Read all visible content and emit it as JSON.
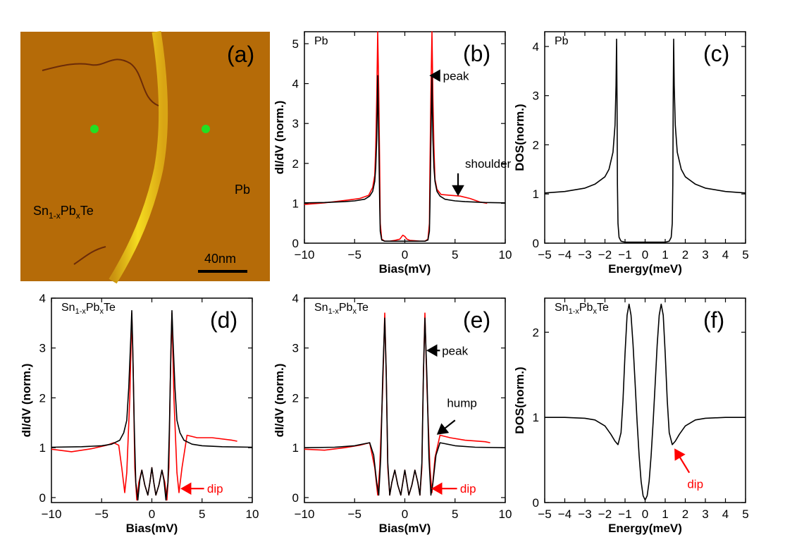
{
  "image_panel": {
    "label": "(a)",
    "text_pb": "Pb",
    "text_sn_main": "Sn",
    "text_sn_sub1": "1-x",
    "text_sn_pb": "Pb",
    "text_sn_sub2": "x",
    "text_sn_end": "Te",
    "scale_bar_label": "40nm",
    "colors": {
      "background": "#b56b08",
      "step": "#f2d21a",
      "marker": "#22e022",
      "defect": "#6b2b08"
    }
  },
  "chart_data": [
    {
      "id": "b",
      "type": "line",
      "label": "(b)",
      "title": "Pb",
      "xlabel": "Bias(mV)",
      "ylabel": "dI/dV (norm.)",
      "xlim": [
        -10,
        10
      ],
      "ylim": [
        0,
        5.3
      ],
      "xticks": [
        -10,
        -5,
        0,
        5,
        10
      ],
      "yticks": [
        0,
        1,
        2,
        3,
        4,
        5
      ],
      "series": [
        {
          "color": "#ff0000",
          "x": [
            -10,
            -8,
            -6,
            -4.5,
            -3.6,
            -3.2,
            -3.0,
            -2.9,
            -2.8,
            -2.7,
            -2.6,
            -2.5,
            -2.45,
            -2.3,
            -2.0,
            -1.5,
            -1.0,
            -0.5,
            -0.2,
            0,
            0.2,
            0.5,
            1.0,
            1.5,
            2.0,
            2.3,
            2.45,
            2.5,
            2.6,
            2.7,
            2.8,
            2.9,
            3.0,
            3.2,
            3.6,
            4.5,
            5.5,
            6.5,
            7.5,
            8.2
          ],
          "y": [
            0.97,
            1.01,
            1.07,
            1.12,
            1.2,
            1.4,
            1.7,
            2.4,
            3.6,
            5.3,
            3.8,
            1.8,
            0.5,
            0.1,
            0.05,
            0.05,
            0.07,
            0.1,
            0.2,
            0.17,
            0.1,
            0.07,
            0.06,
            0.05,
            0.05,
            0.1,
            0.5,
            1.8,
            3.8,
            5.3,
            3.6,
            2.4,
            1.6,
            1.35,
            1.22,
            1.2,
            1.18,
            1.12,
            1.03,
            1.0
          ]
        },
        {
          "color": "#000000",
          "x": [
            -10,
            -8,
            -6,
            -5,
            -4,
            -3.5,
            -3.2,
            -3.0,
            -2.9,
            -2.8,
            -2.75,
            -2.7,
            -2.6,
            -2.5,
            -2.45,
            -2.3,
            -2.0,
            -1.0,
            0,
            1.0,
            2.0,
            2.3,
            2.45,
            2.5,
            2.6,
            2.7,
            2.75,
            2.8,
            2.9,
            3.0,
            3.2,
            3.5,
            4,
            5,
            6,
            8,
            10
          ],
          "y": [
            1.01,
            1.02,
            1.04,
            1.06,
            1.1,
            1.18,
            1.3,
            1.55,
            1.9,
            2.6,
            3.3,
            4.2,
            2.6,
            0.9,
            0.3,
            0.08,
            0.05,
            0.05,
            0.05,
            0.05,
            0.05,
            0.08,
            0.3,
            0.9,
            2.6,
            4.2,
            3.3,
            2.6,
            1.9,
            1.55,
            1.3,
            1.18,
            1.1,
            1.06,
            1.04,
            1.02,
            1.01
          ]
        }
      ],
      "annotations": [
        {
          "text": "peak",
          "color": "#000000",
          "x": 3.8,
          "y": 4.2,
          "arrow_from": [
            3.5,
            4.2
          ],
          "arrow_to": [
            2.6,
            4.2
          ]
        },
        {
          "text": "shoulder",
          "color": "#000000",
          "x": 6,
          "y": 2.0,
          "arrow_from": [
            5.3,
            1.75
          ],
          "arrow_to": [
            5.3,
            1.22
          ]
        }
      ]
    },
    {
      "id": "c",
      "type": "line",
      "label": "(c)",
      "title": "Pb",
      "xlabel": "Energy(meV)",
      "ylabel": "DOS(norm.)",
      "xlim": [
        -5,
        5
      ],
      "ylim": [
        0,
        4.3
      ],
      "xticks": [
        -5,
        -4,
        -3,
        -2,
        -1,
        0,
        1,
        2,
        3,
        4,
        5
      ],
      "yticks": [
        0,
        1,
        2,
        3,
        4
      ],
      "series": [
        {
          "color": "#000000",
          "x": [
            -5,
            -4,
            -3,
            -2.5,
            -2,
            -1.8,
            -1.6,
            -1.5,
            -1.45,
            -1.42,
            -1.4,
            -1.38,
            -1.35,
            -1.3,
            -1.2,
            -1.0,
            0,
            1.0,
            1.2,
            1.3,
            1.35,
            1.38,
            1.4,
            1.42,
            1.45,
            1.5,
            1.6,
            1.8,
            2,
            2.5,
            3,
            4,
            5
          ],
          "y": [
            1.02,
            1.05,
            1.12,
            1.2,
            1.35,
            1.5,
            1.85,
            2.4,
            3.2,
            4.15,
            3.0,
            1.2,
            0.4,
            0.12,
            0.04,
            0.02,
            0.02,
            0.02,
            0.04,
            0.12,
            0.4,
            1.2,
            3.0,
            4.15,
            3.2,
            2.4,
            1.85,
            1.5,
            1.35,
            1.2,
            1.12,
            1.05,
            1.02
          ]
        }
      ],
      "annotations": []
    },
    {
      "id": "d",
      "type": "line",
      "label": "(d)",
      "title": "Sn1-xPbxTe",
      "xlabel": "Bias(mV)",
      "ylabel": "dI/dV (norm.)",
      "xlim": [
        -10,
        10
      ],
      "ylim": [
        -0.1,
        4.0
      ],
      "xticks": [
        -10,
        -5,
        0,
        5,
        10
      ],
      "yticks": [
        0,
        1,
        2,
        3,
        4
      ],
      "series": [
        {
          "color": "#ff0000",
          "x": [
            -10,
            -8,
            -6,
            -4.5,
            -3.8,
            -3.3,
            -3.0,
            -2.7,
            -2.5,
            -2.2,
            -2.0,
            -1.85,
            -1.7,
            -1.5,
            -1.3,
            -1.0,
            -0.7,
            -0.4,
            -0.2,
            0,
            0.2,
            0.4,
            0.7,
            1.0,
            1.3,
            1.5,
            1.7,
            1.85,
            2.0,
            2.2,
            2.5,
            2.7,
            3.0,
            3.5,
            4.5,
            6,
            8,
            8.5
          ],
          "y": [
            0.97,
            0.92,
            0.98,
            1.05,
            1.1,
            1.05,
            0.6,
            0.1,
            0.5,
            2.0,
            3.7,
            2.5,
            0.6,
            -0.05,
            0.3,
            0.55,
            0.25,
            0.05,
            0.3,
            0.6,
            0.3,
            0.05,
            0.25,
            0.55,
            0.3,
            -0.05,
            0.6,
            2.5,
            3.7,
            2.0,
            0.5,
            0.1,
            0.6,
            1.25,
            1.2,
            1.2,
            1.15,
            1.13
          ]
        },
        {
          "color": "#000000",
          "x": [
            -10,
            -7,
            -5,
            -4,
            -3.2,
            -2.8,
            -2.5,
            -2.3,
            -2.1,
            -2.0,
            -1.9,
            -1.75,
            -1.6,
            -1.4,
            -1.2,
            -1.0,
            -0.7,
            -0.4,
            -0.2,
            0,
            0.2,
            0.4,
            0.7,
            1.0,
            1.2,
            1.4,
            1.6,
            1.75,
            1.9,
            2.0,
            2.1,
            2.3,
            2.5,
            2.8,
            3.2,
            4,
            5,
            7,
            10
          ],
          "y": [
            1.01,
            1.02,
            1.04,
            1.07,
            1.15,
            1.3,
            1.55,
            2.2,
            3.2,
            3.75,
            3.0,
            1.4,
            0.3,
            -0.05,
            0.35,
            0.55,
            0.25,
            0.05,
            0.3,
            0.6,
            0.3,
            0.05,
            0.25,
            0.55,
            0.35,
            -0.05,
            0.3,
            1.4,
            3.0,
            3.75,
            3.2,
            2.2,
            1.55,
            1.3,
            1.15,
            1.07,
            1.04,
            1.02,
            1.01
          ]
        }
      ],
      "annotations": [
        {
          "text": "dip",
          "color": "#ff0000",
          "x": 5.5,
          "y": 0.18,
          "arrow_from": [
            5.2,
            0.18
          ],
          "arrow_to": [
            3.0,
            0.18
          ]
        }
      ]
    },
    {
      "id": "e",
      "type": "line",
      "label": "(e)",
      "title": "Sn1-xPbxTe",
      "xlabel": "Bias(mV)",
      "ylabel": "dI/dV (norm.)",
      "xlim": [
        -10,
        10
      ],
      "ylim": [
        -0.1,
        4.0
      ],
      "xticks": [
        -10,
        -5,
        0,
        5,
        10
      ],
      "yticks": [
        0,
        1,
        2,
        3,
        4
      ],
      "series": [
        {
          "color": "#ff0000",
          "x": [
            -10,
            -8,
            -6,
            -4.5,
            -3.5,
            -3.0,
            -2.7,
            -2.5,
            -2.2,
            -2.0,
            -1.85,
            -1.7,
            -1.5,
            -1.3,
            -1.0,
            -0.7,
            -0.4,
            -0.2,
            0,
            0.2,
            0.4,
            0.7,
            1.0,
            1.3,
            1.5,
            1.7,
            1.85,
            2.0,
            2.2,
            2.5,
            2.7,
            3.0,
            3.5,
            4.5,
            6,
            8,
            8.5
          ],
          "y": [
            0.97,
            0.95,
            1.0,
            1.05,
            1.1,
            0.6,
            0.05,
            0.6,
            2.2,
            3.7,
            2.5,
            0.6,
            0.05,
            0.3,
            0.55,
            0.25,
            0.05,
            0.3,
            0.55,
            0.3,
            0.05,
            0.25,
            0.55,
            0.3,
            0.05,
            0.6,
            2.5,
            3.7,
            2.2,
            0.6,
            0.1,
            0.8,
            1.25,
            1.2,
            1.15,
            1.12,
            1.1
          ]
        },
        {
          "color": "#000000",
          "x": [
            -10,
            -7,
            -5,
            -4,
            -3.5,
            -3.1,
            -2.8,
            -2.6,
            -2.4,
            -2.2,
            -2.0,
            -1.85,
            -1.7,
            -1.5,
            -1.3,
            -1.0,
            -0.7,
            -0.4,
            -0.2,
            0,
            0.2,
            0.4,
            0.7,
            1.0,
            1.3,
            1.5,
            1.7,
            1.85,
            2.0,
            2.2,
            2.4,
            2.6,
            2.8,
            3.1,
            3.5,
            4,
            5,
            7,
            10
          ],
          "y": [
            1.0,
            1.01,
            1.04,
            1.08,
            1.1,
            0.85,
            0.3,
            0.05,
            0.8,
            2.4,
            3.6,
            2.5,
            0.7,
            0.05,
            0.3,
            0.55,
            0.25,
            0.05,
            0.3,
            0.55,
            0.3,
            0.05,
            0.25,
            0.55,
            0.3,
            0.05,
            0.7,
            2.5,
            3.6,
            2.4,
            0.8,
            0.05,
            0.3,
            0.85,
            1.1,
            1.08,
            1.04,
            1.01,
            1.0
          ]
        }
      ],
      "annotations": [
        {
          "text": "peak",
          "color": "#000000",
          "x": 3.7,
          "y": 2.95,
          "arrow_from": [
            3.5,
            2.95
          ],
          "arrow_to": [
            2.3,
            2.95
          ]
        },
        {
          "text": "hump",
          "color": "#000000",
          "x": 4.2,
          "y": 1.9,
          "arrow_from": [
            5.0,
            1.55
          ],
          "arrow_to": [
            3.3,
            1.28
          ]
        },
        {
          "text": "dip",
          "color": "#ff0000",
          "x": 5.5,
          "y": 0.18,
          "arrow_from": [
            5.2,
            0.18
          ],
          "arrow_to": [
            2.8,
            0.18
          ]
        }
      ]
    },
    {
      "id": "f",
      "type": "line",
      "label": "(f)",
      "title": "Sn1-xPbxTe",
      "xlabel": "Energy(meV)",
      "ylabel": "DOS(norm.)",
      "xlim": [
        -5,
        5
      ],
      "ylim": [
        0,
        2.4
      ],
      "xticks": [
        -5,
        -4,
        -3,
        -2,
        -1,
        0,
        1,
        2,
        3,
        4,
        5
      ],
      "yticks": [
        0,
        1,
        2
      ],
      "series": [
        {
          "color": "#000000",
          "x": [
            -5,
            -4,
            -3,
            -2.5,
            -2,
            -1.7,
            -1.5,
            -1.35,
            -1.2,
            -1.1,
            -1.0,
            -0.9,
            -0.8,
            -0.7,
            -0.6,
            -0.5,
            -0.4,
            -0.3,
            -0.2,
            -0.1,
            0,
            0.1,
            0.2,
            0.3,
            0.4,
            0.5,
            0.6,
            0.7,
            0.8,
            0.9,
            1.0,
            1.1,
            1.2,
            1.35,
            1.5,
            1.7,
            2,
            2.5,
            3,
            4,
            5
          ],
          "y": [
            1.0,
            1.0,
            0.99,
            0.97,
            0.9,
            0.8,
            0.72,
            0.68,
            0.82,
            1.2,
            1.75,
            2.2,
            2.33,
            2.2,
            1.85,
            1.4,
            0.95,
            0.55,
            0.25,
            0.08,
            0.03,
            0.08,
            0.25,
            0.55,
            0.95,
            1.4,
            1.85,
            2.2,
            2.33,
            2.2,
            1.75,
            1.2,
            0.82,
            0.68,
            0.72,
            0.8,
            0.9,
            0.97,
            0.99,
            1.0,
            1.0
          ]
        }
      ],
      "annotations": [
        {
          "text": "dip",
          "color": "#ff0000",
          "x": 2.1,
          "y": 0.22,
          "arrow_from": [
            2.2,
            0.35
          ],
          "arrow_to": [
            1.5,
            0.62
          ]
        }
      ]
    }
  ]
}
